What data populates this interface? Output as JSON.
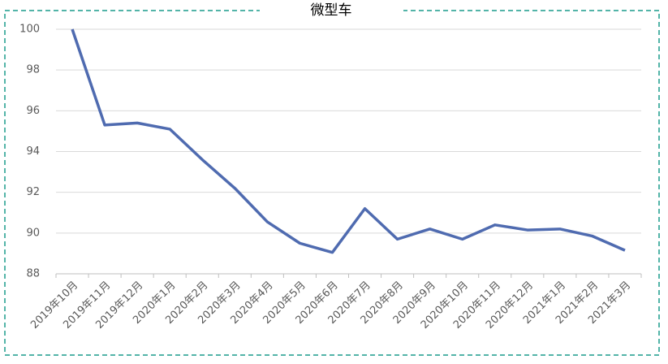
{
  "chart_data": {
    "type": "line",
    "title": "微型车",
    "categories": [
      "2019年10月",
      "2019年11月",
      "2019年12月",
      "2020年1月",
      "2020年2月",
      "2020年3月",
      "2020年4月",
      "2020年5月",
      "2020年6月",
      "2020年7月",
      "2020年8月",
      "2020年9月",
      "2020年10月",
      "2020年11月",
      "2020年12月",
      "2021年1月",
      "2021年2月",
      "2021年3月"
    ],
    "series": [
      {
        "name": "微型车",
        "color": "#4f6bb0",
        "values": [
          100,
          95.3,
          95.4,
          95.1,
          93.6,
          92.2,
          90.55,
          89.5,
          89.05,
          91.2,
          89.7,
          90.2,
          89.7,
          90.4,
          90.15,
          90.2,
          89.85,
          89.15
        ]
      }
    ],
    "ylim": [
      88,
      100
    ],
    "yticks": [
      88,
      90,
      92,
      94,
      96,
      98,
      100
    ],
    "grid": true
  }
}
